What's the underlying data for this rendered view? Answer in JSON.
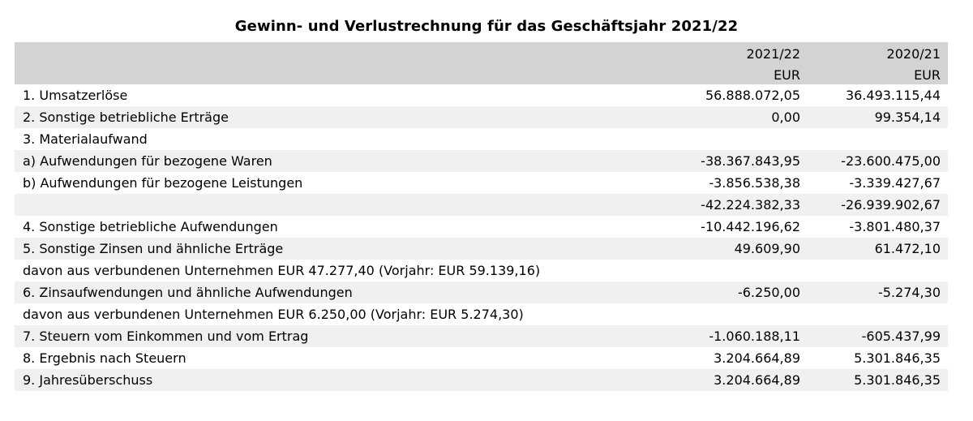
{
  "title": "Gewinn- und Verlustrechnung für das Geschäftsjahr 2021/22",
  "header": {
    "col1_year": "2021/22",
    "col1_unit": "EUR",
    "col2_year": "2020/21",
    "col2_unit": "EUR"
  },
  "rows": [
    {
      "label": "1. Umsatzerlöse",
      "v1": "56.888.072,05",
      "v2": "36.493.115,44"
    },
    {
      "label": "2. Sonstige betriebliche Erträge",
      "v1": "0,00",
      "v2": "99.354,14"
    },
    {
      "label": "3. Materialaufwand",
      "v1": "",
      "v2": ""
    },
    {
      "label": "a) Aufwendungen für bezogene Waren",
      "v1": "-38.367.843,95",
      "v2": "-23.600.475,00"
    },
    {
      "label": "b) Aufwendungen für bezogene Leistungen",
      "v1": "-3.856.538,38",
      "v2": "-3.339.427,67"
    },
    {
      "label": "",
      "v1": "-42.224.382,33",
      "v2": "-26.939.902,67"
    },
    {
      "label": "4. Sonstige betriebliche Aufwendungen",
      "v1": "-10.442.196,62",
      "v2": "-3.801.480,37"
    },
    {
      "label": "5. Sonstige Zinsen und ähnliche Erträge",
      "v1": "49.609,90",
      "v2": "61.472,10"
    },
    {
      "label": "davon aus verbundenen Unternehmen EUR 47.277,40 (Vorjahr: EUR 59.139,16)",
      "v1": "",
      "v2": ""
    },
    {
      "label": "6. Zinsaufwendungen und ähnliche Aufwendungen",
      "v1": "-6.250,00",
      "v2": "-5.274,30"
    },
    {
      "label": "davon aus verbundenen Unternehmen EUR 6.250,00 (Vorjahr: EUR 5.274,30)",
      "v1": "",
      "v2": ""
    },
    {
      "label": "7. Steuern vom Einkommen und vom Ertrag",
      "v1": "-1.060.188,11",
      "v2": "-605.437,99"
    },
    {
      "label": "8. Ergebnis nach Steuern",
      "v1": "3.204.664,89",
      "v2": "5.301.846,35"
    },
    {
      "label": "9. Jahresüberschuss",
      "v1": "3.204.664,89",
      "v2": "5.301.846,35"
    }
  ]
}
